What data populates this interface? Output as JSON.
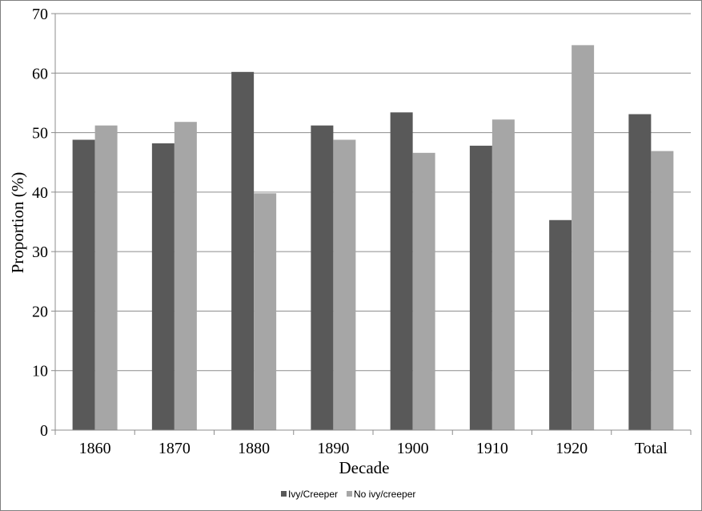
{
  "chart_data": {
    "type": "bar",
    "title": "",
    "xlabel": "Decade",
    "ylabel": "Proportion (%)",
    "ylim": [
      0,
      70
    ],
    "yticks": [
      0,
      10,
      20,
      30,
      40,
      50,
      60,
      70
    ],
    "categories": [
      "1860",
      "1870",
      "1880",
      "1890",
      "1900",
      "1910",
      "1920",
      "Total"
    ],
    "grid": true,
    "legend": "bottom",
    "series": [
      {
        "name": "Ivy/Creeper",
        "color": "#595959",
        "values": [
          48.8,
          48.2,
          60.2,
          51.2,
          53.4,
          47.8,
          35.3,
          53.1
        ]
      },
      {
        "name": "No ivy/creeper",
        "color": "#a6a6a6",
        "values": [
          51.2,
          51.8,
          39.8,
          48.8,
          46.6,
          52.2,
          64.7,
          46.9
        ]
      }
    ]
  }
}
